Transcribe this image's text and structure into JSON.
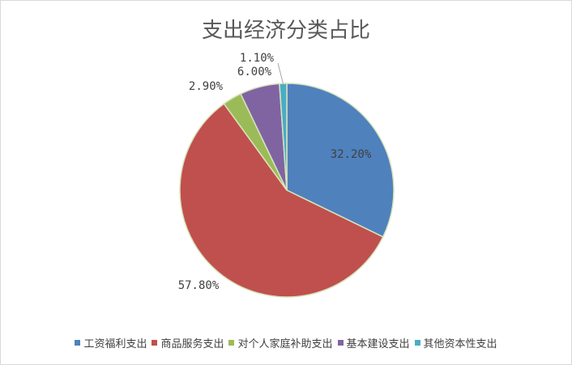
{
  "chart_data": {
    "type": "pie",
    "title": "支出经济分类占比",
    "categories": [
      "工资福利支出",
      "商品服务支出",
      "对个人家庭补助支出",
      "基本建设支出",
      "其他资本性支出"
    ],
    "values": [
      32.2,
      57.8,
      2.9,
      6.0,
      1.1
    ],
    "value_labels": [
      "32.20%",
      "57.80%",
      "2.90%",
      "6.00%",
      "1.10%"
    ],
    "colors": [
      "#4f81bd",
      "#c0504d",
      "#9bbb59",
      "#8064a2",
      "#4bacc6"
    ],
    "legend": "bottom"
  }
}
